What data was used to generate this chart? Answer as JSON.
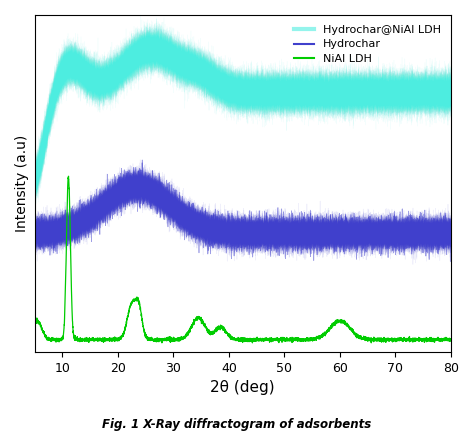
{
  "xlabel": "2θ (deg)",
  "ylabel": "Intensity (a.u)",
  "caption": "Fig. 1 X-Ray diffractogram of adsorbents",
  "xlim": [
    5,
    80
  ],
  "xticks": [
    10,
    20,
    30,
    40,
    50,
    60,
    70,
    80
  ],
  "legend": {
    "hydrochar_nial": "Hydrochar@NiAl LDH",
    "hydrochar": "Hydrochar",
    "nial": "NiAl LDH"
  },
  "colors": {
    "hydrochar_nial": "#4DEDE0",
    "hydrochar": "#4040CC",
    "nial": "#00CC00"
  },
  "background": "#ffffff"
}
